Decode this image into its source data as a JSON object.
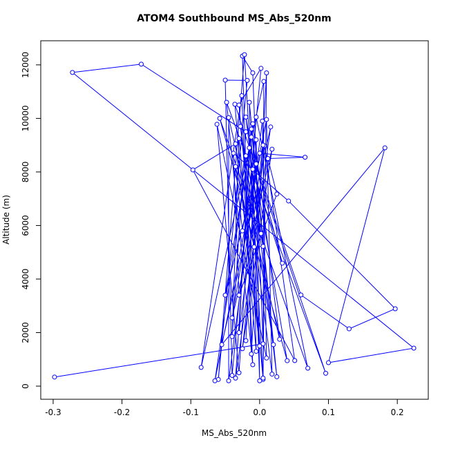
{
  "chart_data": {
    "type": "line",
    "title": "ATOM4 Southbound MS_Abs_520nm",
    "x_label": "MS_Abs_520nm",
    "y_label": "Altitude (m)",
    "xlim": [
      -0.318,
      0.245
    ],
    "ylim": [
      -490,
      12900
    ],
    "xticks": [
      -0.3,
      -0.2,
      -0.1,
      {
        "value": 0,
        "label": "0.0"
      },
      0.1,
      0.2
    ],
    "yticks": [
      0,
      2000,
      4000,
      6000,
      8000,
      10000,
      12000
    ],
    "grid": false,
    "markers": true,
    "series": [
      {
        "color": "#0000ff",
        "x": [
          -0.298,
          0.005,
          -0.01,
          -0.025,
          -0.012,
          0.01,
          0.005,
          -0.03,
          0.002,
          -0.04,
          -0.05,
          -0.018,
          -0.06,
          -0.022,
          0.005,
          0.006,
          -0.085,
          -0.026,
          -0.01,
          -0.048,
          0.096,
          -0.036,
          -0.005,
          -0.015,
          0.025,
          -0.02,
          0.04,
          -0.058,
          0.07,
          -0.005,
          -0.03,
          -0.062,
          0.01,
          0.004,
          -0.045,
          -0.045,
          0.029,
          -0.01,
          -0.065,
          0.01,
          0.018,
          -0.028,
          0.02,
          -0.012,
          -0.035,
          0.016,
          -0.055,
          0.182,
          0.1,
          0.224,
          -0.272,
          -0.172,
          -0.02,
          -0.04,
          -0.03,
          0.0,
          -0.035,
          -0.097,
          0.051,
          0.007,
          -0.025,
          0.018,
          -0.04,
          0.0,
          0.066,
          0.012,
          0.025,
          -0.03,
          -0.038,
          0.042,
          0.197,
          0.13,
          0.06,
          -0.005,
          0.033,
          -0.01,
          -0.025,
          -0.035,
          -0.008,
          0.005,
          -0.02,
          0.002,
          -0.015,
          -0.03,
          0.005,
          -0.05,
          -0.012,
          0.0,
          -0.005,
          -0.02
        ],
        "values": [
          340,
          1580,
          11700,
          12330,
          1200,
          11700,
          250,
          10500,
          11870,
          400,
          11430,
          11420,
          250,
          12380,
          300,
          11380,
          700,
          10850,
          800,
          10600,
          480,
          10530,
          1300,
          10600,
          350,
          10050,
          950,
          10000,
          670,
          10050,
          500,
          9780,
          1050,
          9900,
          200,
          10030,
          1750,
          9800,
          200,
          9960,
          450,
          9700,
          1550,
          9600,
          300,
          9680,
          1550,
          8900,
          877,
          1420,
          11716,
          12026,
          9500,
          1850,
          9250,
          1500,
          9050,
          8077,
          955,
          8980,
          1400,
          8850,
          2550,
          8700,
          8550,
          8500,
          7174,
          3400,
          8700,
          6916,
          2890,
          2140,
          3406,
          8300,
          4594,
          8100,
          5800,
          8200,
          5200,
          5220,
          8600,
          5700,
          8900,
          2000,
          9000,
          3400,
          9300,
          200,
          9200,
          1700
        ]
      }
    ]
  }
}
